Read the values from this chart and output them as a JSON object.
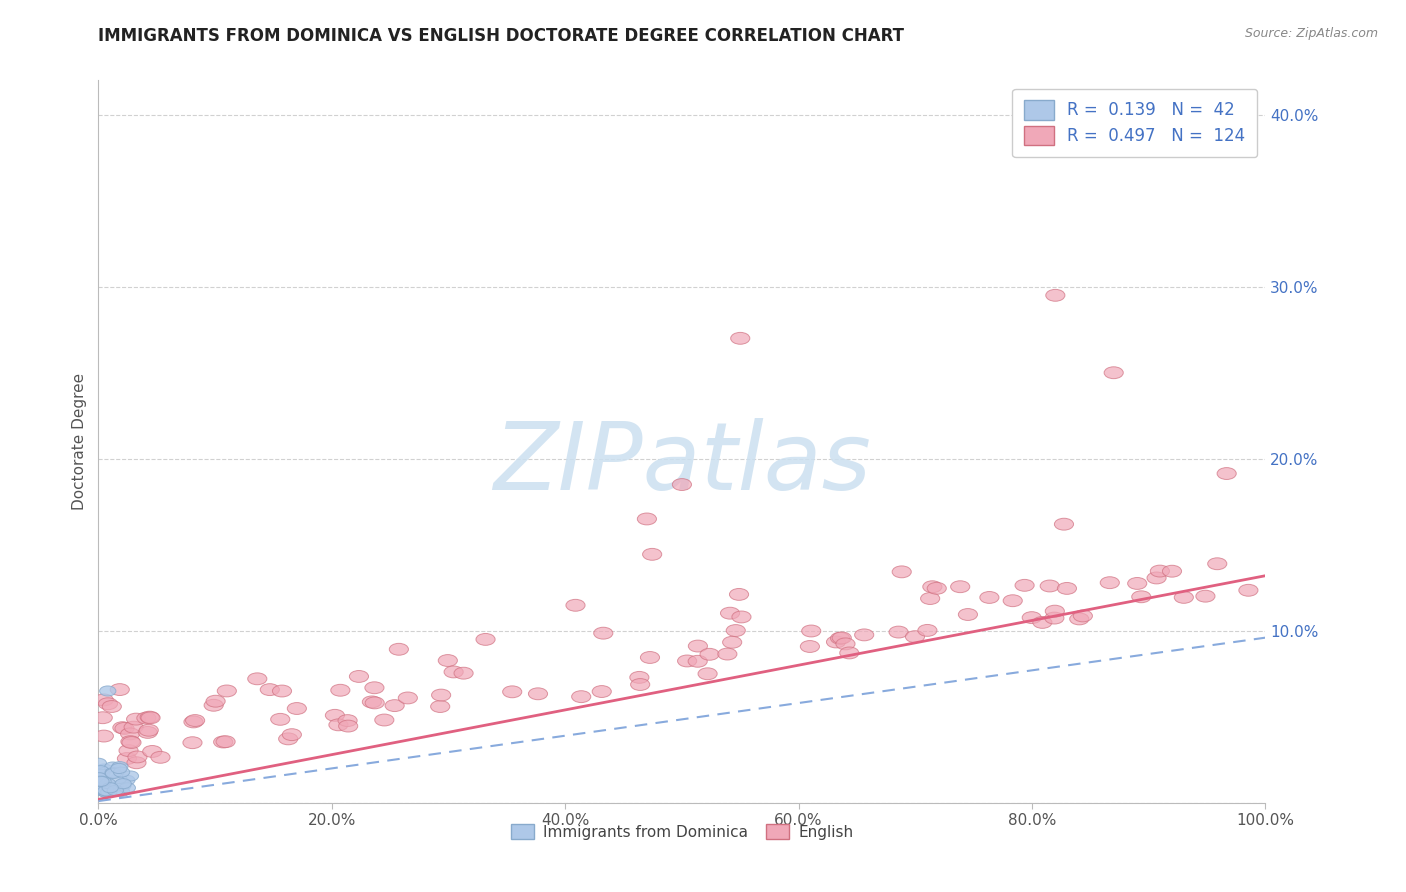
{
  "title": "IMMIGRANTS FROM DOMINICA VS ENGLISH DOCTORATE DEGREE CORRELATION CHART",
  "source": "Source: ZipAtlas.com",
  "ylabel": "Doctorate Degree",
  "xlim": [
    0,
    1.0
  ],
  "ylim": [
    0,
    0.42
  ],
  "xtick_vals": [
    0.0,
    0.2,
    0.4,
    0.6,
    0.8,
    1.0
  ],
  "xtick_labels": [
    "0.0%",
    "20.0%",
    "40.0%",
    "60.0%",
    "80.0%",
    "100.0%"
  ],
  "ytick_vals": [
    0.0,
    0.1,
    0.2,
    0.3,
    0.4
  ],
  "ytick_labels": [
    "",
    "10.0%",
    "20.0%",
    "30.0%",
    "40.0%"
  ],
  "legend_blue_r": "0.139",
  "legend_blue_n": "42",
  "legend_pink_r": "0.497",
  "legend_pink_n": "124",
  "legend_label_blue": "Immigrants from Dominica",
  "legend_label_pink": "English",
  "blue_face_color": "#aec8e8",
  "blue_edge_color": "#88aacc",
  "pink_face_color": "#f0a8b8",
  "pink_edge_color": "#d07080",
  "blue_line_color": "#88aadd",
  "pink_line_color": "#e06080",
  "watermark_text": "ZIPatlas",
  "watermark_color": "#cce0f0",
  "title_color": "#222222",
  "source_color": "#888888",
  "ylabel_color": "#555555",
  "ytick_color": "#4472c4",
  "xtick_color": "#555555",
  "grid_color": "#cccccc",
  "legend_text_color": "#4472c4",
  "bottom_legend_color": "#444444",
  "pink_line_slope": 0.13,
  "pink_line_intercept": 0.002,
  "blue_line_slope": 0.095,
  "blue_line_intercept": 0.001
}
